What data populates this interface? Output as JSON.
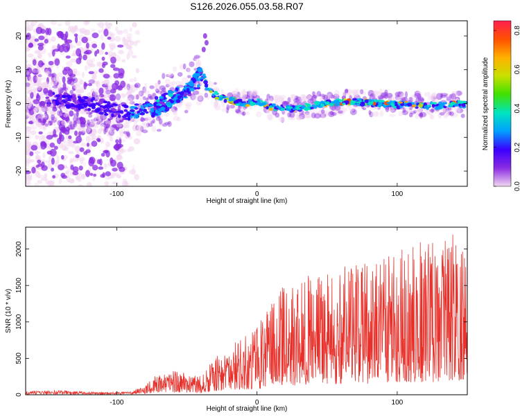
{
  "title": "S126.2026.055.03.58.R07",
  "colors": {
    "snr_line": "#e8302a",
    "axis": "#000000"
  },
  "colorbar": {
    "label": "Normalized spectral amplitude",
    "ticks": [
      "0.0",
      "0.2",
      "0.4",
      "0.6",
      "0.8"
    ],
    "range": [
      0,
      0.85
    ],
    "stops": [
      "#f2d7f0",
      "#8a2be2",
      "#3a00ff",
      "#00a0ff",
      "#00e5c0",
      "#40e000",
      "#c8e000",
      "#ffb000",
      "#ff5000",
      "#ff2050"
    ]
  },
  "chart_data": [
    {
      "type": "heatmap",
      "title": "S126.2026.055.03.58.R07",
      "xlabel": "Height of straight line (km)",
      "ylabel": "Frequency (Hz)",
      "xlim": [
        -165,
        150
      ],
      "ylim": [
        -24.5,
        24.5
      ],
      "x_ticks": [
        "-100",
        "0",
        "100"
      ],
      "x_tick_values": [
        -100,
        0,
        100
      ],
      "y_ticks": [
        "-20",
        "-10",
        "0",
        "10",
        "20"
      ],
      "y_tick_values": [
        -20,
        -10,
        0,
        10,
        20
      ],
      "ridge": {
        "x": [
          -160,
          -140,
          -120,
          -100,
          -90,
          -80,
          -70,
          -60,
          -50,
          -42,
          -38,
          -35,
          -30,
          -20,
          -10,
          0,
          10,
          20,
          30,
          40,
          50,
          60,
          70,
          80,
          90,
          100,
          110,
          120,
          130,
          140,
          150
        ],
        "y": [
          2,
          1,
          0,
          -2,
          -3,
          -1,
          0,
          2,
          4,
          6,
          8,
          4,
          2.5,
          1,
          0,
          0.5,
          -1,
          -1.5,
          -1.5,
          -0.5,
          0,
          0.5,
          0.5,
          0.2,
          0,
          -0.5,
          -0.3,
          -0.5,
          -0.7,
          -0.3,
          -0.2
        ]
      },
      "secondary_branch": {
        "x": [
          -75,
          -70,
          -65,
          -60,
          -55,
          -50,
          -45,
          -40
        ],
        "y": [
          -3,
          -2,
          -1,
          0,
          2,
          4,
          7,
          10
        ]
      },
      "spike": {
        "x": [
          -38,
          -37,
          -36
        ],
        "y": [
          16,
          20,
          18
        ]
      }
    },
    {
      "type": "line",
      "xlabel": "Height of straight line (km)",
      "ylabel": "SNR (10 * v/v)",
      "xlim": [
        -165,
        150
      ],
      "ylim": [
        0,
        2300
      ],
      "x_ticks": [
        "-100",
        "0",
        "100"
      ],
      "x_tick_values": [
        -100,
        0,
        100
      ],
      "y_ticks": [
        "0",
        "500",
        "1000",
        "1500",
        "2000"
      ],
      "y_tick_values": [
        0,
        500,
        1000,
        1500,
        2000
      ],
      "envelope": {
        "x": [
          -165,
          -140,
          -120,
          -100,
          -90,
          -80,
          -70,
          -60,
          -50,
          -40,
          -30,
          -20,
          -10,
          0,
          10,
          20,
          30,
          40,
          50,
          60,
          70,
          80,
          90,
          100,
          110,
          120,
          130,
          140,
          150
        ],
        "y": [
          40,
          50,
          30,
          30,
          40,
          120,
          300,
          350,
          300,
          250,
          500,
          650,
          800,
          950,
          1250,
          1550,
          1600,
          1650,
          1700,
          1750,
          1800,
          1850,
          1900,
          2000,
          2050,
          2100,
          2150,
          2200,
          1900
        ]
      }
    }
  ]
}
